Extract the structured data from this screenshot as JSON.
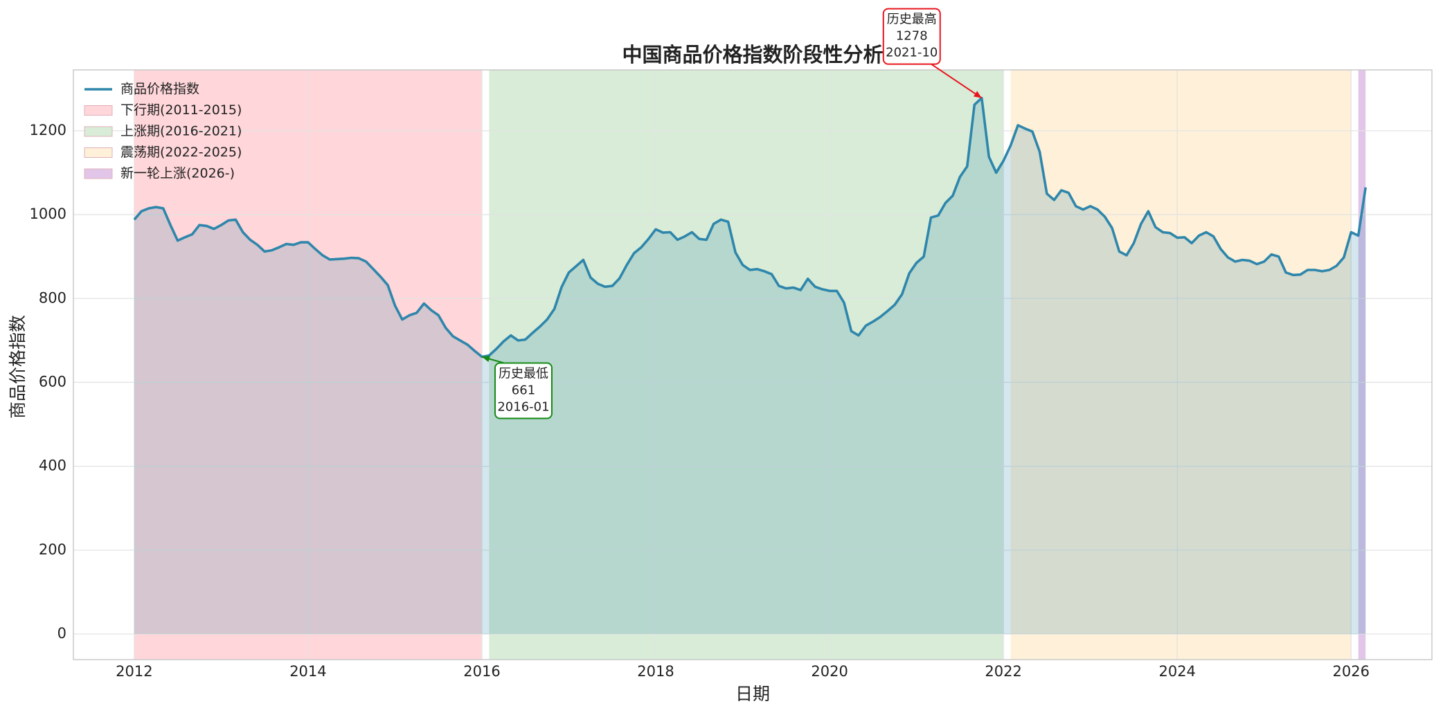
{
  "chart_data": {
    "type": "line",
    "title": "中国商品价格指数阶段性分析",
    "x_label": "日期",
    "y_label": "商品价格指数",
    "x": [
      "2012-01",
      "2012-02",
      "2012-03",
      "2012-04",
      "2012-05",
      "2012-06",
      "2012-07",
      "2012-08",
      "2012-09",
      "2012-10",
      "2012-11",
      "2012-12",
      "2013-01",
      "2013-02",
      "2013-03",
      "2013-04",
      "2013-05",
      "2013-06",
      "2013-07",
      "2013-08",
      "2013-09",
      "2013-10",
      "2013-11",
      "2013-12",
      "2014-01",
      "2014-02",
      "2014-03",
      "2014-04",
      "2014-05",
      "2014-06",
      "2014-07",
      "2014-08",
      "2014-09",
      "2014-10",
      "2014-11",
      "2014-12",
      "2015-01",
      "2015-02",
      "2015-03",
      "2015-04",
      "2015-05",
      "2015-06",
      "2015-07",
      "2015-08",
      "2015-09",
      "2015-10",
      "2015-11",
      "2015-12",
      "2016-01",
      "2016-02",
      "2016-03",
      "2016-04",
      "2016-05",
      "2016-06",
      "2016-07",
      "2016-08",
      "2016-09",
      "2016-10",
      "2016-11",
      "2016-12",
      "2017-01",
      "2017-02",
      "2017-03",
      "2017-04",
      "2017-05",
      "2017-06",
      "2017-07",
      "2017-08",
      "2017-09",
      "2017-10",
      "2017-11",
      "2017-12",
      "2018-01",
      "2018-02",
      "2018-03",
      "2018-04",
      "2018-05",
      "2018-06",
      "2018-07",
      "2018-08",
      "2018-09",
      "2018-10",
      "2018-11",
      "2018-12",
      "2019-01",
      "2019-02",
      "2019-03",
      "2019-04",
      "2019-05",
      "2019-06",
      "2019-07",
      "2019-08",
      "2019-09",
      "2019-10",
      "2019-11",
      "2019-12",
      "2020-01",
      "2020-02",
      "2020-03",
      "2020-04",
      "2020-05",
      "2020-06",
      "2020-07",
      "2020-08",
      "2020-09",
      "2020-10",
      "2020-11",
      "2020-12",
      "2021-01",
      "2021-02",
      "2021-03",
      "2021-04",
      "2021-05",
      "2021-06",
      "2021-07",
      "2021-08",
      "2021-09",
      "2021-10",
      "2021-11",
      "2021-12",
      "2022-01",
      "2022-02",
      "2022-03",
      "2022-04",
      "2022-05",
      "2022-06",
      "2022-07",
      "2022-08",
      "2022-09",
      "2022-10",
      "2022-11",
      "2022-12",
      "2023-01",
      "2023-02",
      "2023-03",
      "2023-04",
      "2023-05",
      "2023-06",
      "2023-07",
      "2023-08",
      "2023-09",
      "2023-10",
      "2023-11",
      "2023-12",
      "2024-01",
      "2024-02",
      "2024-03",
      "2024-04",
      "2024-05",
      "2024-06",
      "2024-07",
      "2024-08",
      "2024-09",
      "2024-10",
      "2024-11",
      "2024-12",
      "2025-01",
      "2025-02",
      "2025-03",
      "2025-04",
      "2025-05",
      "2025-06",
      "2025-07",
      "2025-08",
      "2025-09",
      "2025-10",
      "2025-11",
      "2025-12",
      "2026-01",
      "2026-02",
      "2026-03"
    ],
    "series": [
      {
        "name": "商品价格指数",
        "color": "#2e86ab",
        "values": [
          988,
          1008,
          1015,
          1018,
          1015,
          975,
          938,
          946,
          953,
          975,
          973,
          966,
          975,
          986,
          988,
          958,
          940,
          928,
          912,
          915,
          922,
          930,
          928,
          934,
          934,
          918,
          903,
          893,
          894,
          895,
          897,
          896,
          888,
          870,
          852,
          832,
          783,
          750,
          760,
          766,
          788,
          772,
          760,
          730,
          710,
          700,
          690,
          675,
          661,
          664,
          680,
          698,
          712,
          700,
          702,
          718,
          733,
          750,
          775,
          827,
          862,
          877,
          892,
          850,
          835,
          828,
          830,
          848,
          880,
          908,
          922,
          942,
          965,
          957,
          958,
          940,
          948,
          958,
          942,
          940,
          978,
          988,
          983,
          910,
          880,
          868,
          870,
          865,
          858,
          830,
          824,
          826,
          820,
          847,
          828,
          822,
          818,
          818,
          790,
          722,
          712,
          735,
          745,
          756,
          770,
          785,
          810,
          860,
          885,
          900,
          993,
          998,
          1028,
          1045,
          1090,
          1115,
          1262,
          1278,
          1138,
          1100,
          1128,
          1165,
          1213,
          1205,
          1198,
          1150,
          1050,
          1035,
          1058,
          1052,
          1020,
          1012,
          1020,
          1012,
          995,
          968,
          912,
          903,
          932,
          978,
          1008,
          970,
          958,
          956,
          945,
          946,
          932,
          950,
          958,
          948,
          918,
          898,
          888,
          892,
          890,
          882,
          888,
          905,
          900,
          862,
          856,
          857,
          868,
          868,
          865,
          868,
          878,
          898,
          958,
          950,
          1065
        ]
      }
    ],
    "spans": [
      {
        "name": "下行期(2011-2015)",
        "start": "2012-01",
        "end": "2016-01",
        "color": "#ffd6d9"
      },
      {
        "name": "上涨期(2016-2021)",
        "start": "2016-02",
        "end": "2022-01",
        "color": "#d8ecd8"
      },
      {
        "name": "震荡期(2022-2025)",
        "start": "2022-02",
        "end": "2026-01",
        "color": "#fff0d9"
      },
      {
        "name": "新一轮上涨(2026-)",
        "start": "2026-02",
        "end": "2026-03",
        "color": "#e2c6ea"
      }
    ],
    "annotations": [
      {
        "label": "历史最高",
        "value": 1278,
        "x": "2021-10",
        "color": "#e8141c"
      },
      {
        "label": "历史最低",
        "value": 661,
        "x": "2016-01",
        "color": "#138a13"
      }
    ],
    "xlim": [
      2011.3,
      2026.93
    ],
    "xticks": [
      2012,
      2014,
      2016,
      2018,
      2020,
      2022,
      2024,
      2026
    ],
    "ylim": [
      -61,
      1345
    ],
    "yticks": [
      0,
      200,
      400,
      600,
      800,
      1000,
      1200
    ],
    "grid": true,
    "legend": "upper left"
  }
}
